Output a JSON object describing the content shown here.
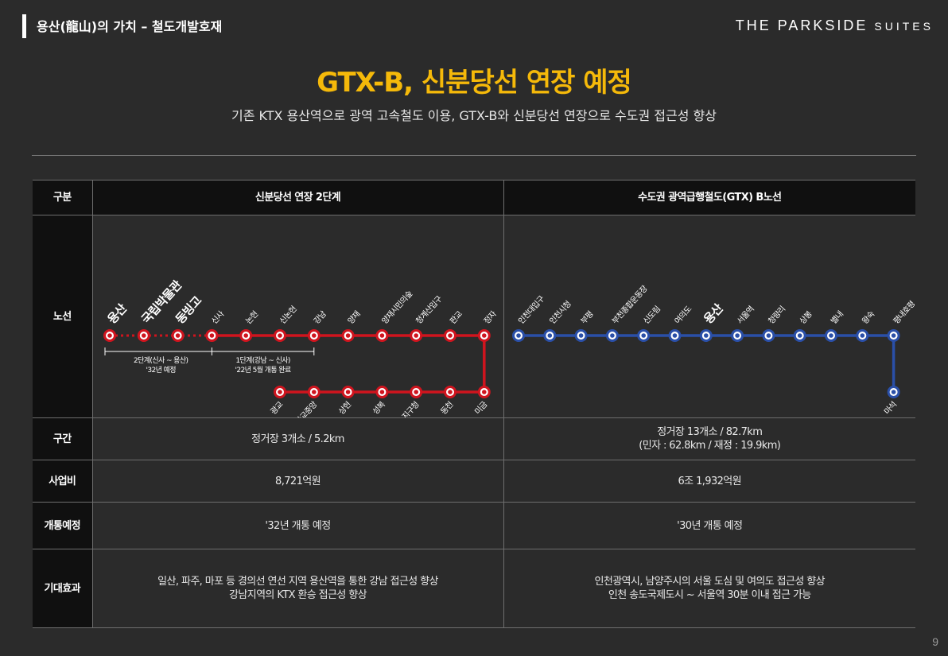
{
  "header": {
    "section_title": "용산(龍山)의 가치 – 철도개발호재",
    "brand_main": "THE PARKSIDE",
    "brand_sub": "SUITES"
  },
  "main_title": "GTX-B, 신분당선 연장 예정",
  "subtitle": "기존 KTX  용산역으로 광역 고속철도 이용, GTX-B와 신분당선 연장으로 수도권 접근성 향상",
  "table": {
    "col_header": "구분",
    "col1_header": "신분당선 연장 2단계",
    "col2_header": "수도권 광역급행철도(GTX) B노선",
    "rows": {
      "route_label": "노선",
      "section_label": "구간",
      "section_col1": "정거장 3개소 / 5.2km",
      "section_col2_line1": "정거장 13개소 / 82.7km",
      "section_col2_line2": "(민자 : 62.8km / 재정 : 19.9km)",
      "cost_label": "사업비",
      "cost_col1": "8,721억원",
      "cost_col2": "6조 1,932억원",
      "open_label": "개통예정",
      "open_col1": "'32년 개통 예정",
      "open_col2": "'30년 개통 예정",
      "effect_label": "기대효과",
      "effect_col1_line1": "일산, 파주, 마포 등 경의선 연선 지역 용산역을 통한 강남 접근성 향상",
      "effect_col1_line2": "강남지역의 KTX 환승 접근성 향상",
      "effect_col2_line1": "인천광역시, 남양주시의 서울 도심 및 여의도 접근성 향상",
      "effect_col2_line2": "인천 송도국제도시 ~ 서울역 30분 이내 접근 가능"
    }
  },
  "sinbundang": {
    "line_color": "#d0141e",
    "top_stations": [
      "용산",
      "국립박물관",
      "동빙고",
      "신사",
      "논현",
      "신논현",
      "강남",
      "양재",
      "양재시민의숲",
      "청계산입구",
      "판교",
      "정자"
    ],
    "bottom_stations": [
      "광교",
      "광교중앙",
      "상현",
      "성복",
      "수지구청",
      "동천",
      "미금"
    ],
    "phase2_line1": "2단계(신사 ~ 용산)",
    "phase2_line2": "'32년 예정",
    "phase1_line1": "1단계(강남 ~ 신사)",
    "phase1_line2": "'22년 5월 개통 완료"
  },
  "gtxb": {
    "line_color": "#2a4fa8",
    "stations": [
      "인천대입구",
      "인천시청",
      "부평",
      "부천종합운동장",
      "신도림",
      "여의도",
      "용산",
      "서울역",
      "청량리",
      "상봉",
      "별내",
      "왕숙",
      "평내호평"
    ],
    "branch_station": "마석"
  },
  "page_number": "9"
}
